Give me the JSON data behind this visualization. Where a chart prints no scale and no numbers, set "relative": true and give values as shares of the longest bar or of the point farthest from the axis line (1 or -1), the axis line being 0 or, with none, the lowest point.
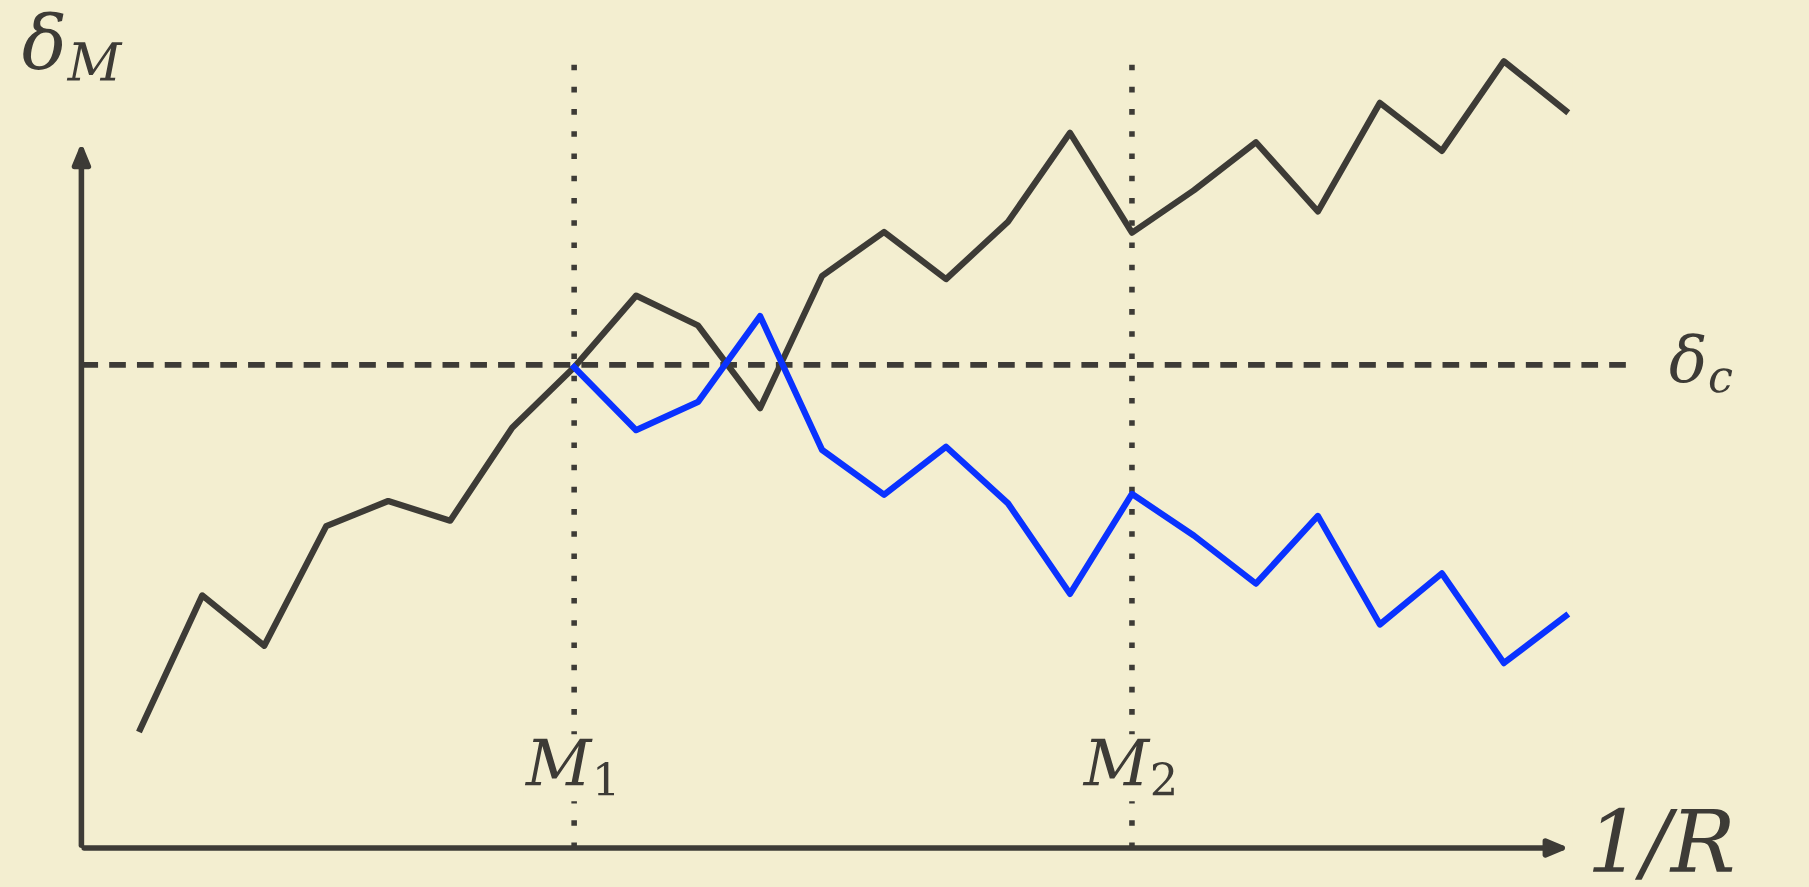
{
  "chart_data": {
    "type": "line",
    "relative": true,
    "xlabel": "1/R",
    "ylabel": "δ$_{M}$",
    "grid": "x",
    "marker": "none",
    "line_style": "solid",
    "categories": [
      null,
      null,
      null,
      null,
      null,
      null,
      null,
      "M$_{1}$",
      null,
      null,
      null,
      null,
      null,
      null,
      null,
      null,
      "M$_{2}$",
      null,
      null,
      null,
      null,
      null,
      null,
      null
    ],
    "series": [
      {
        "color": "#3d3b36",
        "values": [
          0.151,
          0.321,
          0.257,
          0.409,
          0.441,
          0.416,
          0.534,
          0.611,
          0.702,
          0.664,
          0.559,
          0.727,
          0.783,
          0.723,
          0.796,
          0.909,
          0.782,
          0.836,
          0.897,
          0.809,
          0.947,
          0.886,
          1.0,
          0.937
        ]
      },
      {
        "color": "#0a32ff",
        "values": [
          null,
          null,
          null,
          null,
          null,
          null,
          null,
          0.611,
          0.531,
          0.567,
          0.676,
          0.506,
          0.449,
          0.51,
          0.438,
          0.323,
          0.45,
          0.397,
          0.336,
          0.422,
          0.284,
          0.349,
          0.235,
          0.295
        ]
      }
    ],
    "ref_lines": [
      {
        "axis": "y",
        "value": 0.614,
        "label": "δ$_{c}$",
        "color": "#3d3b36",
        "line_style": "dashed"
      }
    ]
  }
}
